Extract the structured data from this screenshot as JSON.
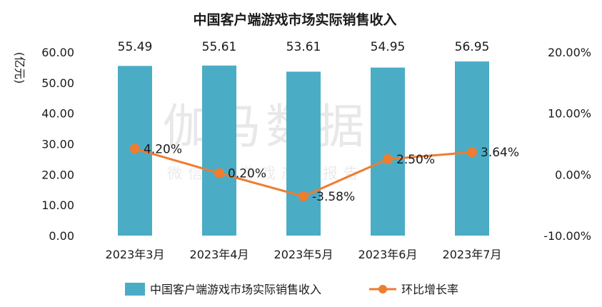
{
  "watermark": {
    "main": "伽马数据",
    "sub": "微信号 游戏产业报告"
  },
  "chart_data": {
    "type": "bar",
    "title": "中国客户端游戏市场实际销售收入",
    "ylabel": "(亿元)",
    "categories": [
      "2023年3月",
      "2023年4月",
      "2023年5月",
      "2023年6月",
      "2023年7月"
    ],
    "y_left": {
      "min": 0,
      "max": 60,
      "step": 10,
      "tick_labels": [
        "0.00",
        "10.00",
        "20.00",
        "30.00",
        "40.00",
        "50.00",
        "60.00"
      ]
    },
    "y_right": {
      "min": -10,
      "max": 20,
      "step": 10,
      "tick_labels": [
        "-10.00%",
        "0.00%",
        "10.00%",
        "20.00%"
      ]
    },
    "series": [
      {
        "name": "中国客户端游戏市场实际销售收入",
        "type": "bar",
        "axis": "left",
        "color": "#4bacc6",
        "values": [
          55.49,
          55.61,
          53.61,
          54.95,
          56.95
        ],
        "labels": [
          "55.49",
          "55.61",
          "53.61",
          "54.95",
          "56.95"
        ]
      },
      {
        "name": "环比增长率",
        "type": "line",
        "axis": "right",
        "color": "#ed7d31",
        "values": [
          4.2,
          0.2,
          -3.58,
          2.5,
          3.64
        ],
        "labels": [
          "4.20%",
          "0.20%",
          "-3.58%",
          "2.50%",
          "3.64%"
        ]
      }
    ],
    "legend_position": "bottom",
    "grid": false
  }
}
